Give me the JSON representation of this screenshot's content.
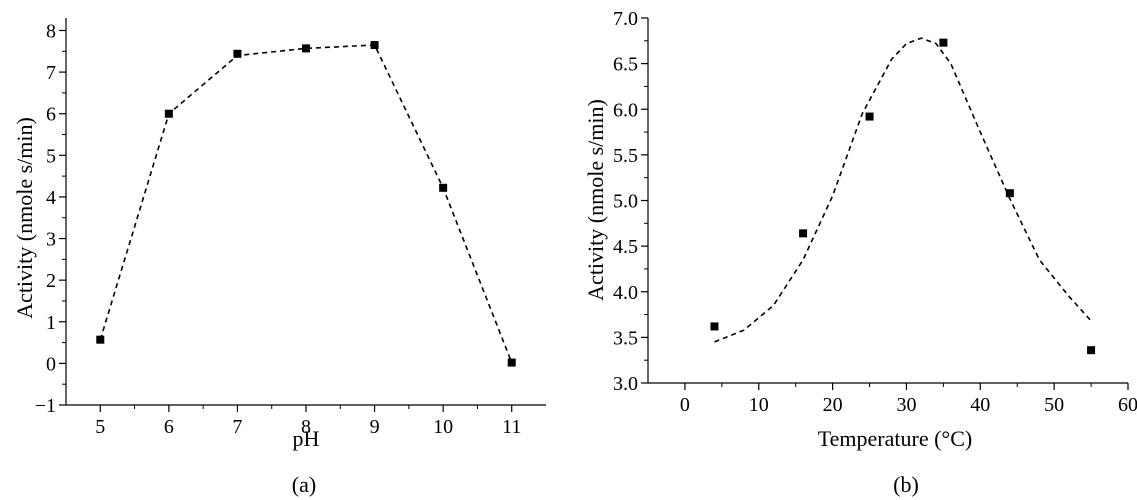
{
  "figure": {
    "panels": [
      {
        "caption": "(a)",
        "xlabel": "pH",
        "ylabel": "Activity (nmole s/min)"
      },
      {
        "caption": "(b)",
        "xlabel": "Temperature (°C)",
        "ylabel": "Activity (nmole s/min)"
      }
    ],
    "colors": {
      "axes": "#000000",
      "marker": "#000000",
      "fit_line": "#000000",
      "background": "#ffffff"
    }
  },
  "chart_data": [
    {
      "type": "scatter",
      "title": "",
      "caption": "(a)",
      "xlabel": "pH",
      "ylabel": "Activity (nmole s/min)",
      "xlim": [
        4.5,
        11.5
      ],
      "ylim": [
        -1,
        8.3
      ],
      "xticks": [
        5,
        6,
        7,
        8,
        9,
        10,
        11
      ],
      "xtick_labels": [
        "5",
        "6",
        "7",
        "8",
        "9",
        "10",
        "11"
      ],
      "yticks": [
        -1,
        0,
        1,
        2,
        3,
        4,
        5,
        6,
        7,
        8
      ],
      "ytick_labels": [
        "−1",
        "0",
        "1",
        "2",
        "3",
        "4",
        "5",
        "6",
        "7",
        "8"
      ],
      "grid": false,
      "series": [
        {
          "x": [
            5,
            6,
            7,
            8,
            9,
            10,
            11
          ],
          "values": [
            0.57,
            6.0,
            7.44,
            7.57,
            7.65,
            4.22,
            0.02
          ],
          "marker": "square"
        }
      ],
      "fit_line": {
        "style": "dashed",
        "x": [
          5,
          6,
          7,
          8,
          9,
          10,
          11
        ],
        "y": [
          0.57,
          6.0,
          7.4,
          7.57,
          7.65,
          4.22,
          0.02
        ]
      }
    },
    {
      "type": "scatter",
      "title": "",
      "caption": "(b)",
      "xlabel": "Temperature (°C)",
      "ylabel": "Activity (nmole s/min)",
      "xlim": [
        -5,
        60
      ],
      "ylim": [
        3.0,
        7.0
      ],
      "xticks": [
        0,
        10,
        20,
        30,
        40,
        50,
        60
      ],
      "xtick_labels": [
        "0",
        "10",
        "20",
        "30",
        "40",
        "50",
        "60"
      ],
      "yticks": [
        3.0,
        3.5,
        4.0,
        4.5,
        5.0,
        5.5,
        6.0,
        6.5,
        7.0
      ],
      "ytick_labels": [
        "3.0",
        "3.5",
        "4.0",
        "4.5",
        "5.0",
        "5.5",
        "6.0",
        "6.5",
        "7.0"
      ],
      "grid": false,
      "series": [
        {
          "x": [
            4,
            16,
            25,
            35,
            44,
            55
          ],
          "values": [
            3.62,
            4.64,
            5.92,
            6.73,
            5.08,
            3.36
          ],
          "marker": "square"
        }
      ],
      "fit_line": {
        "style": "dashed",
        "x": [
          4,
          8,
          12,
          16,
          20,
          24,
          28,
          30,
          32,
          34,
          36,
          40,
          44,
          48,
          52,
          55
        ],
        "y": [
          3.45,
          3.58,
          3.85,
          4.35,
          5.05,
          5.95,
          6.55,
          6.72,
          6.78,
          6.72,
          6.5,
          5.75,
          5.02,
          4.35,
          3.95,
          3.68
        ]
      }
    }
  ]
}
